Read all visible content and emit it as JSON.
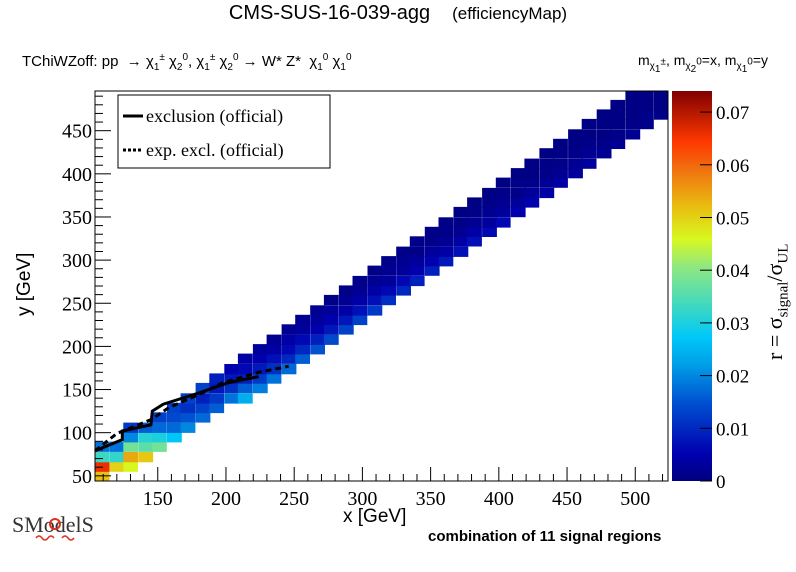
{
  "header": {
    "title": "CMS-SUS-16-039-agg",
    "subtitle": "(efficiencyMap)",
    "process_prefix": "TChiWZoff: pp",
    "process_parts": [
      "χ",
      "1",
      "±",
      "χ",
      "2",
      "0",
      "χ",
      "1",
      "±",
      "χ",
      "2",
      "0"
    ],
    "process_decay": "→ W* Z*",
    "arrow": "→",
    "comma": ",",
    "mass_m": "m",
    "mass_x": "=x,",
    "mass_y": "=y",
    "chi": "χ",
    "pm": "±",
    "zero": "0",
    "one": "1",
    "two": "2"
  },
  "footer": {
    "text": "combination of 11 signal regions"
  },
  "logo": {
    "text": "SModelS"
  },
  "colors": {
    "palette": [
      "#00007f",
      "#0000b0",
      "#0028d0",
      "#0060d8",
      "#0098e0",
      "#00c8f0",
      "#30d8c8",
      "#70e090",
      "#b0f050",
      "#e0f020",
      "#f0c010",
      "#f08010",
      "#ff3800",
      "#d01000",
      "#800000"
    ]
  },
  "chart_data": {
    "type": "heatmap",
    "title": "CMS-SUS-16-039-agg (efficiencyMap)",
    "xlabel": "x [GeV]",
    "ylabel": "y [GeV]",
    "zlabel_main": "r = σ",
    "zlabel_sub1": "signal",
    "zlabel_slash": "/σ",
    "zlabel_sub2": "UL",
    "xlim": [
      104,
      524
    ],
    "ylim": [
      44,
      496
    ],
    "zlim": [
      0,
      0.074
    ],
    "xticks": [
      150,
      200,
      250,
      300,
      350,
      400,
      450,
      500
    ],
    "xtick_labels": [
      "150",
      "200",
      "250",
      "300",
      "350",
      "400",
      "450",
      "500"
    ],
    "yticks": [
      50,
      100,
      150,
      200,
      250,
      300,
      350,
      400,
      450
    ],
    "ytick_labels": [
      "50",
      "100",
      "150",
      "200",
      "250",
      "300",
      "350",
      "400",
      "450"
    ],
    "zticks": [
      0,
      0.01,
      0.02,
      0.03,
      0.04,
      0.05,
      0.06,
      0.07
    ],
    "ztick_labels": [
      "0",
      "0.01",
      "0.02",
      "0.03",
      "0.04",
      "0.05",
      "0.06",
      "0.07"
    ],
    "legend": {
      "position": "top-left",
      "entries": [
        {
          "label": "exclusion (official)",
          "style": "solid"
        },
        {
          "label": "exp. excl. (official)",
          "style": "dotted"
        }
      ]
    },
    "bin_width_x": 10.5,
    "bin_height_y": 11.3,
    "cells": [
      {
        "x": 109,
        "y": 50,
        "r": 0.052
      },
      {
        "x": 109,
        "y": 61,
        "r": 0.066
      },
      {
        "x": 109,
        "y": 72,
        "r": 0.033
      },
      {
        "x": 109,
        "y": 84,
        "r": 0.018
      },
      {
        "x": 120,
        "y": 61,
        "r": 0.05
      },
      {
        "x": 120,
        "y": 72,
        "r": 0.032
      },
      {
        "x": 120,
        "y": 84,
        "r": 0.018
      },
      {
        "x": 130,
        "y": 61,
        "r": 0.046
      },
      {
        "x": 130,
        "y": 72,
        "r": 0.054
      },
      {
        "x": 130,
        "y": 84,
        "r": 0.038
      },
      {
        "x": 130,
        "y": 95,
        "r": 0.02
      },
      {
        "x": 130,
        "y": 106,
        "r": 0.012
      },
      {
        "x": 141,
        "y": 72,
        "r": 0.051
      },
      {
        "x": 141,
        "y": 84,
        "r": 0.036
      },
      {
        "x": 141,
        "y": 95,
        "r": 0.031
      },
      {
        "x": 141,
        "y": 106,
        "r": 0.016
      },
      {
        "x": 151,
        "y": 84,
        "r": 0.038
      },
      {
        "x": 151,
        "y": 95,
        "r": 0.03
      },
      {
        "x": 151,
        "y": 106,
        "r": 0.017
      },
      {
        "x": 151,
        "y": 118,
        "r": 0.013
      },
      {
        "x": 162,
        "y": 95,
        "r": 0.027
      },
      {
        "x": 162,
        "y": 106,
        "r": 0.017
      },
      {
        "x": 162,
        "y": 118,
        "r": 0.014
      },
      {
        "x": 162,
        "y": 129,
        "r": 0.013
      },
      {
        "x": 172,
        "y": 106,
        "r": 0.02
      },
      {
        "x": 172,
        "y": 118,
        "r": 0.015
      },
      {
        "x": 172,
        "y": 129,
        "r": 0.011
      },
      {
        "x": 172,
        "y": 140,
        "r": 0.013
      },
      {
        "x": 183,
        "y": 118,
        "r": 0.017
      },
      {
        "x": 183,
        "y": 129,
        "r": 0.013
      },
      {
        "x": 183,
        "y": 140,
        "r": 0.009
      },
      {
        "x": 183,
        "y": 152,
        "r": 0.013
      },
      {
        "x": 193,
        "y": 129,
        "r": 0.016
      },
      {
        "x": 193,
        "y": 140,
        "r": 0.012
      },
      {
        "x": 193,
        "y": 152,
        "r": 0.008
      },
      {
        "x": 193,
        "y": 163,
        "r": 0.009
      },
      {
        "x": 204,
        "y": 140,
        "r": 0.018
      },
      {
        "x": 204,
        "y": 152,
        "r": 0.011
      },
      {
        "x": 204,
        "y": 163,
        "r": 0.008
      },
      {
        "x": 204,
        "y": 174,
        "r": 0.005
      },
      {
        "x": 214,
        "y": 140,
        "r": 0.024
      },
      {
        "x": 214,
        "y": 152,
        "r": 0.016
      },
      {
        "x": 214,
        "y": 163,
        "r": 0.009
      },
      {
        "x": 214,
        "y": 174,
        "r": 0.006
      },
      {
        "x": 214,
        "y": 186,
        "r": 0.004
      },
      {
        "x": 225,
        "y": 152,
        "r": 0.019
      },
      {
        "x": 225,
        "y": 163,
        "r": 0.012
      },
      {
        "x": 225,
        "y": 174,
        "r": 0.008
      },
      {
        "x": 225,
        "y": 186,
        "r": 0.005
      },
      {
        "x": 225,
        "y": 197,
        "r": 0.003
      },
      {
        "x": 235,
        "y": 163,
        "r": 0.018
      },
      {
        "x": 235,
        "y": 174,
        "r": 0.011
      },
      {
        "x": 235,
        "y": 186,
        "r": 0.007
      },
      {
        "x": 235,
        "y": 197,
        "r": 0.004
      },
      {
        "x": 235,
        "y": 208,
        "r": 0.002
      },
      {
        "x": 246,
        "y": 174,
        "r": 0.017
      },
      {
        "x": 246,
        "y": 186,
        "r": 0.01
      },
      {
        "x": 246,
        "y": 197,
        "r": 0.006
      },
      {
        "x": 246,
        "y": 208,
        "r": 0.004
      },
      {
        "x": 246,
        "y": 220,
        "r": 0.002
      },
      {
        "x": 256,
        "y": 186,
        "r": 0.016
      },
      {
        "x": 256,
        "y": 197,
        "r": 0.01
      },
      {
        "x": 256,
        "y": 208,
        "r": 0.006
      },
      {
        "x": 256,
        "y": 220,
        "r": 0.003
      },
      {
        "x": 256,
        "y": 231,
        "r": 0.002
      },
      {
        "x": 267,
        "y": 197,
        "r": 0.015
      },
      {
        "x": 267,
        "y": 208,
        "r": 0.009
      },
      {
        "x": 267,
        "y": 220,
        "r": 0.005
      },
      {
        "x": 267,
        "y": 231,
        "r": 0.003
      },
      {
        "x": 267,
        "y": 242,
        "r": 0.002
      },
      {
        "x": 277,
        "y": 208,
        "r": 0.014
      },
      {
        "x": 277,
        "y": 220,
        "r": 0.008
      },
      {
        "x": 277,
        "y": 231,
        "r": 0.005
      },
      {
        "x": 277,
        "y": 242,
        "r": 0.003
      },
      {
        "x": 277,
        "y": 254,
        "r": 0.001
      },
      {
        "x": 288,
        "y": 220,
        "r": 0.013
      },
      {
        "x": 288,
        "y": 231,
        "r": 0.008
      },
      {
        "x": 288,
        "y": 242,
        "r": 0.004
      },
      {
        "x": 288,
        "y": 254,
        "r": 0.002
      },
      {
        "x": 288,
        "y": 265,
        "r": 0.001
      },
      {
        "x": 298,
        "y": 231,
        "r": 0.013
      },
      {
        "x": 298,
        "y": 242,
        "r": 0.007
      },
      {
        "x": 298,
        "y": 254,
        "r": 0.004
      },
      {
        "x": 298,
        "y": 265,
        "r": 0.002
      },
      {
        "x": 298,
        "y": 276,
        "r": 0.001
      },
      {
        "x": 309,
        "y": 242,
        "r": 0.012
      },
      {
        "x": 309,
        "y": 254,
        "r": 0.007
      },
      {
        "x": 309,
        "y": 265,
        "r": 0.004
      },
      {
        "x": 309,
        "y": 276,
        "r": 0.002
      },
      {
        "x": 309,
        "y": 288,
        "r": 0.001
      },
      {
        "x": 319,
        "y": 254,
        "r": 0.011
      },
      {
        "x": 319,
        "y": 265,
        "r": 0.006
      },
      {
        "x": 319,
        "y": 276,
        "r": 0.003
      },
      {
        "x": 319,
        "y": 288,
        "r": 0.002
      },
      {
        "x": 319,
        "y": 299,
        "r": 0.001
      },
      {
        "x": 330,
        "y": 265,
        "r": 0.01
      },
      {
        "x": 330,
        "y": 276,
        "r": 0.006
      },
      {
        "x": 330,
        "y": 288,
        "r": 0.003
      },
      {
        "x": 330,
        "y": 299,
        "r": 0.002
      },
      {
        "x": 330,
        "y": 310,
        "r": 0.001
      },
      {
        "x": 340,
        "y": 276,
        "r": 0.009
      },
      {
        "x": 340,
        "y": 288,
        "r": 0.005
      },
      {
        "x": 340,
        "y": 299,
        "r": 0.003
      },
      {
        "x": 340,
        "y": 310,
        "r": 0.001
      },
      {
        "x": 340,
        "y": 322,
        "r": 0.001
      },
      {
        "x": 351,
        "y": 288,
        "r": 0.009
      },
      {
        "x": 351,
        "y": 299,
        "r": 0.005
      },
      {
        "x": 351,
        "y": 310,
        "r": 0.003
      },
      {
        "x": 351,
        "y": 322,
        "r": 0.001
      },
      {
        "x": 351,
        "y": 333,
        "r": 0.001
      },
      {
        "x": 361,
        "y": 299,
        "r": 0.008
      },
      {
        "x": 361,
        "y": 310,
        "r": 0.004
      },
      {
        "x": 361,
        "y": 322,
        "r": 0.002
      },
      {
        "x": 361,
        "y": 333,
        "r": 0.001
      },
      {
        "x": 361,
        "y": 344,
        "r": 0.001
      },
      {
        "x": 372,
        "y": 310,
        "r": 0.007
      },
      {
        "x": 372,
        "y": 322,
        "r": 0.004
      },
      {
        "x": 372,
        "y": 333,
        "r": 0.002
      },
      {
        "x": 372,
        "y": 344,
        "r": 0.001
      },
      {
        "x": 372,
        "y": 356,
        "r": 0.0005
      },
      {
        "x": 382,
        "y": 322,
        "r": 0.007
      },
      {
        "x": 382,
        "y": 333,
        "r": 0.004
      },
      {
        "x": 382,
        "y": 344,
        "r": 0.002
      },
      {
        "x": 382,
        "y": 356,
        "r": 0.001
      },
      {
        "x": 382,
        "y": 367,
        "r": 0.0005
      },
      {
        "x": 393,
        "y": 333,
        "r": 0.006
      },
      {
        "x": 393,
        "y": 344,
        "r": 0.003
      },
      {
        "x": 393,
        "y": 356,
        "r": 0.002
      },
      {
        "x": 393,
        "y": 367,
        "r": 0.001
      },
      {
        "x": 393,
        "y": 378,
        "r": 0.0005
      },
      {
        "x": 403,
        "y": 344,
        "r": 0.006
      },
      {
        "x": 403,
        "y": 356,
        "r": 0.003
      },
      {
        "x": 403,
        "y": 367,
        "r": 0.002
      },
      {
        "x": 403,
        "y": 378,
        "r": 0.001
      },
      {
        "x": 403,
        "y": 390,
        "r": 0.0005
      },
      {
        "x": 414,
        "y": 356,
        "r": 0.005
      },
      {
        "x": 414,
        "y": 367,
        "r": 0.003
      },
      {
        "x": 414,
        "y": 378,
        "r": 0.001
      },
      {
        "x": 414,
        "y": 390,
        "r": 0.001
      },
      {
        "x": 414,
        "y": 401,
        "r": 0.0005
      },
      {
        "x": 424,
        "y": 367,
        "r": 0.005
      },
      {
        "x": 424,
        "y": 378,
        "r": 0.003
      },
      {
        "x": 424,
        "y": 390,
        "r": 0.001
      },
      {
        "x": 424,
        "y": 401,
        "r": 0.0005
      },
      {
        "x": 424,
        "y": 412,
        "r": 0.0005
      },
      {
        "x": 435,
        "y": 378,
        "r": 0.004
      },
      {
        "x": 435,
        "y": 390,
        "r": 0.002
      },
      {
        "x": 435,
        "y": 401,
        "r": 0.001
      },
      {
        "x": 435,
        "y": 412,
        "r": 0.0005
      },
      {
        "x": 435,
        "y": 424,
        "r": 0.0005
      },
      {
        "x": 445,
        "y": 390,
        "r": 0.004
      },
      {
        "x": 445,
        "y": 401,
        "r": 0.002
      },
      {
        "x": 445,
        "y": 412,
        "r": 0.001
      },
      {
        "x": 445,
        "y": 424,
        "r": 0.0005
      },
      {
        "x": 445,
        "y": 435,
        "r": 0.0005
      },
      {
        "x": 456,
        "y": 401,
        "r": 0.003
      },
      {
        "x": 456,
        "y": 412,
        "r": 0.002
      },
      {
        "x": 456,
        "y": 424,
        "r": 0.001
      },
      {
        "x": 456,
        "y": 435,
        "r": 0.0005
      },
      {
        "x": 456,
        "y": 446,
        "r": 0.0005
      },
      {
        "x": 466,
        "y": 412,
        "r": 0.003
      },
      {
        "x": 466,
        "y": 424,
        "r": 0.002
      },
      {
        "x": 466,
        "y": 435,
        "r": 0.001
      },
      {
        "x": 466,
        "y": 446,
        "r": 0.0005
      },
      {
        "x": 466,
        "y": 458,
        "r": 0.0005
      },
      {
        "x": 477,
        "y": 424,
        "r": 0.002
      },
      {
        "x": 477,
        "y": 435,
        "r": 0.001
      },
      {
        "x": 477,
        "y": 446,
        "r": 0.0005
      },
      {
        "x": 477,
        "y": 458,
        "r": 0.0005
      },
      {
        "x": 477,
        "y": 469,
        "r": 0.0005
      },
      {
        "x": 487,
        "y": 435,
        "r": 0.002
      },
      {
        "x": 487,
        "y": 446,
        "r": 0.001
      },
      {
        "x": 487,
        "y": 458,
        "r": 0.0005
      },
      {
        "x": 487,
        "y": 469,
        "r": 0.0005
      },
      {
        "x": 487,
        "y": 480,
        "r": 0.0005
      },
      {
        "x": 498,
        "y": 446,
        "r": 0.002
      },
      {
        "x": 498,
        "y": 458,
        "r": 0.001
      },
      {
        "x": 498,
        "y": 469,
        "r": 0.0005
      },
      {
        "x": 498,
        "y": 480,
        "r": 0.0005
      },
      {
        "x": 498,
        "y": 491,
        "r": 0.0005
      },
      {
        "x": 508,
        "y": 458,
        "r": 0.001
      },
      {
        "x": 508,
        "y": 469,
        "r": 0.001
      },
      {
        "x": 508,
        "y": 480,
        "r": 0.0005
      },
      {
        "x": 508,
        "y": 491,
        "r": 0.0005
      },
      {
        "x": 519,
        "y": 469,
        "r": 0.001
      },
      {
        "x": 519,
        "y": 480,
        "r": 0.0005
      },
      {
        "x": 519,
        "y": 491,
        "r": 0.0005
      }
    ],
    "lines": [
      {
        "name": "exclusion (official)",
        "style": "solid",
        "x": [
          104,
          124,
          124,
          145,
          146,
          154,
          180,
          202,
          224
        ],
        "y": [
          79,
          92,
          102,
          109,
          125,
          133,
          146,
          158,
          165
        ]
      },
      {
        "name": "exp. excl. (official)",
        "style": "dotted",
        "x": [
          104,
          120,
          145,
          158,
          180,
          198,
          224,
          246
        ],
        "y": [
          79,
          99,
          115,
          129,
          144,
          158,
          170,
          177
        ]
      }
    ]
  }
}
